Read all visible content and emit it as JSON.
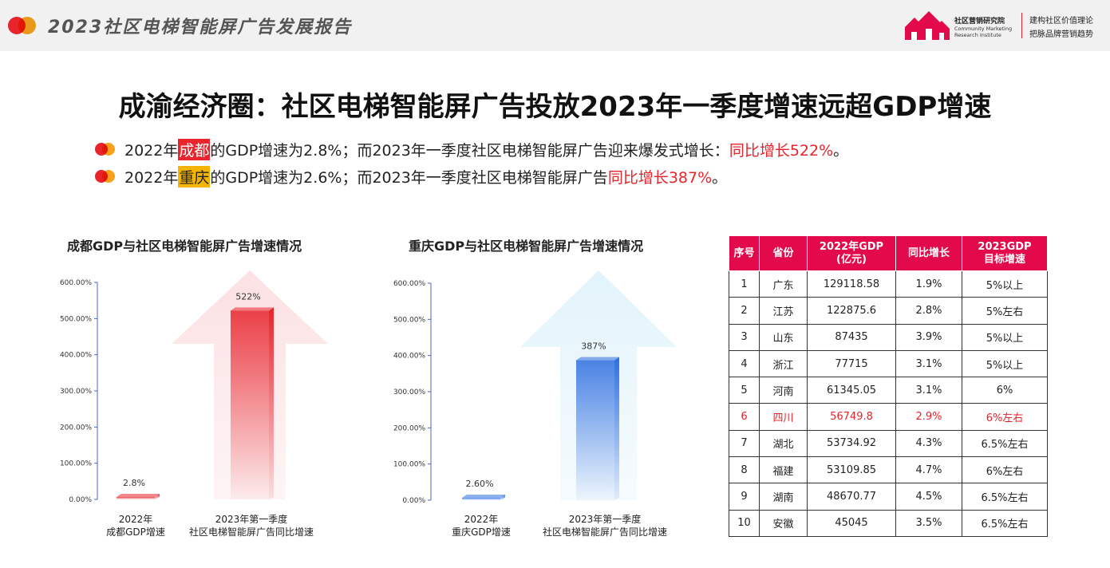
{
  "header": {
    "title": "2023社区电梯智能屏广告发展报告",
    "brand_cn": "社区营销研究院",
    "brand_en": "Community Marketing Research Institute",
    "slogan1": "建构社区价值理论",
    "slogan2": "把脉品牌营销趋势",
    "accent": "#e8242c",
    "accent2": "#f6a21a"
  },
  "main_title": "成渝经济圈：社区电梯智能屏广告投放2023年一季度增速远超GDP增速",
  "bullets": [
    {
      "pre": "2022年",
      "city": "成都",
      "mid": "的GDP增速为2.8%；而2023年一季度社区电梯智能屏广告迎来爆发式增长：",
      "red": "同比增长522%",
      "post": "。"
    },
    {
      "pre": "2022年",
      "city": "重庆",
      "mid": "的GDP增速为2.6%；而2023年一季度社区电梯智能屏广告",
      "red": "同比增长387%",
      "post": "。"
    }
  ],
  "chart_data": [
    {
      "type": "bar",
      "title": "成都GDP与社区电梯智能屏广告增速情况",
      "categories": [
        "2022年\n成都GDP增速",
        "2023年第一季度\n社区电梯智能屏广告同比增速"
      ],
      "values": [
        2.8,
        522
      ],
      "data_labels": [
        "2.8%",
        "522%"
      ],
      "yticks": [
        "0.00%",
        "100.00%",
        "200.00%",
        "300.00%",
        "400.00%",
        "500.00%",
        "600.00%"
      ],
      "ylim": [
        0,
        600
      ],
      "color": "#e8242c",
      "arrow_color": "#fbe1e3"
    },
    {
      "type": "bar",
      "title": "重庆GDP与社区电梯智能屏广告增速情况",
      "categories": [
        "2022年\n重庆GDP增速",
        "2023年第一季度\n社区电梯智能屏广告同比增速"
      ],
      "values": [
        2.6,
        387
      ],
      "data_labels": [
        "2.60%",
        "387%"
      ],
      "yticks": [
        "0.00%",
        "100.00%",
        "200.00%",
        "300.00%",
        "400.00%",
        "500.00%",
        "600.00%"
      ],
      "ylim": [
        0,
        600
      ],
      "color": "#2f6fe0",
      "arrow_color": "#e3f3fb"
    },
    {
      "type": "table",
      "columns": [
        "序号",
        "省份",
        "2022年GDP\n(亿元)",
        "同比增长",
        "2023GDP\n目标增速"
      ],
      "rows": [
        [
          "1",
          "广东",
          "129118.58",
          "1.9%",
          "5%以上"
        ],
        [
          "2",
          "江苏",
          "122875.6",
          "2.8%",
          "5%左右"
        ],
        [
          "3",
          "山东",
          "87435",
          "3.9%",
          "5%以上"
        ],
        [
          "4",
          "浙江",
          "77715",
          "3.1%",
          "5%以上"
        ],
        [
          "5",
          "河南",
          "61345.05",
          "3.1%",
          "6%"
        ],
        [
          "6",
          "四川",
          "56749.8",
          "2.9%",
          "6%左右"
        ],
        [
          "7",
          "湖北",
          "53734.92",
          "4.3%",
          "6.5%左右"
        ],
        [
          "8",
          "福建",
          "53109.85",
          "4.7%",
          "6%左右"
        ],
        [
          "9",
          "湖南",
          "48670.77",
          "4.5%",
          "6.5%左右"
        ],
        [
          "10",
          "安徽",
          "45045",
          "3.5%",
          "6.5%左右"
        ]
      ],
      "highlight_row": 5,
      "header_color": "#e20a4a"
    }
  ]
}
